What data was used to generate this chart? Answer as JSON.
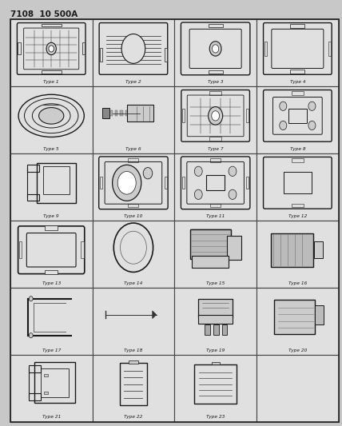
{
  "title": "7108  10 500A",
  "bg_color": "#c8c8c8",
  "cell_bg": "#e8e8e8",
  "white": "#ffffff",
  "dark": "#1a1a1a",
  "labels": [
    "Type 1",
    "Type 2",
    "Type 3",
    "Type 4",
    "Type 5",
    "Type 6",
    "Type 7",
    "Type 8",
    "Type 9",
    "Type 10",
    "Type 11",
    "Type 12",
    "Type 13",
    "Type 14",
    "Type 15",
    "Type 16",
    "Type 17",
    "Type 18",
    "Type 19",
    "Type 20",
    "Type 21",
    "Type 22",
    "Type 23",
    ""
  ],
  "ncols": 4,
  "nrows": 6,
  "figsize": [
    4.28,
    5.33
  ],
  "dpi": 100
}
